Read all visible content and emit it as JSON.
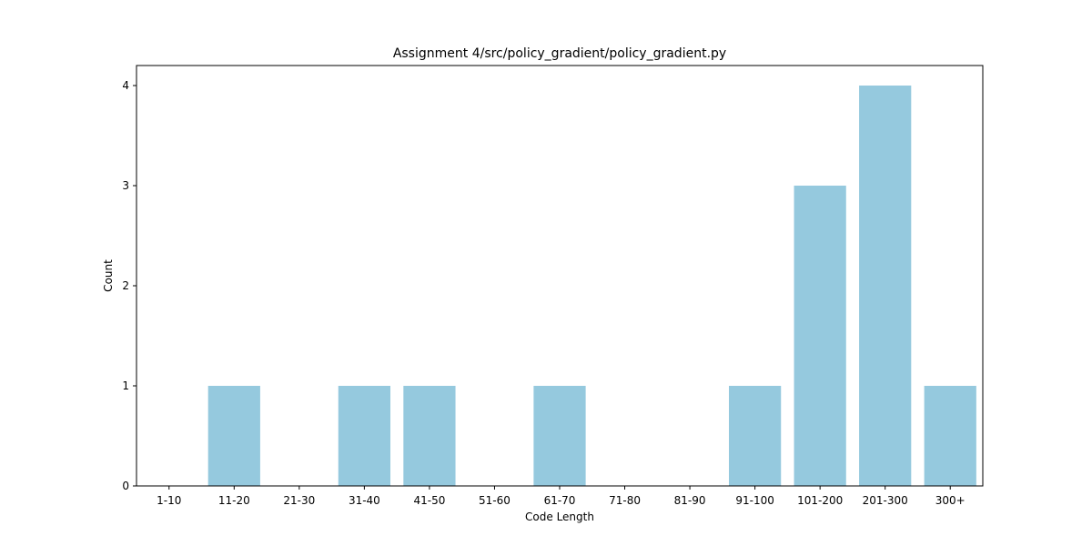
{
  "chart_data": {
    "type": "bar",
    "title": "Assignment 4/src/policy_gradient/policy_gradient.py",
    "xlabel": "Code Length",
    "ylabel": "Count",
    "categories": [
      "1-10",
      "11-20",
      "21-30",
      "31-40",
      "41-50",
      "51-60",
      "61-70",
      "71-80",
      "81-90",
      "91-100",
      "101-200",
      "201-300",
      "300+"
    ],
    "values": [
      0,
      1,
      0,
      1,
      1,
      0,
      1,
      0,
      0,
      1,
      3,
      4,
      1
    ],
    "yticks": [
      "0",
      "1",
      "2",
      "3",
      "4"
    ],
    "ylim": [
      0,
      4.2
    ],
    "bar_color": "#95c9de",
    "grid": false,
    "legend": "none"
  }
}
